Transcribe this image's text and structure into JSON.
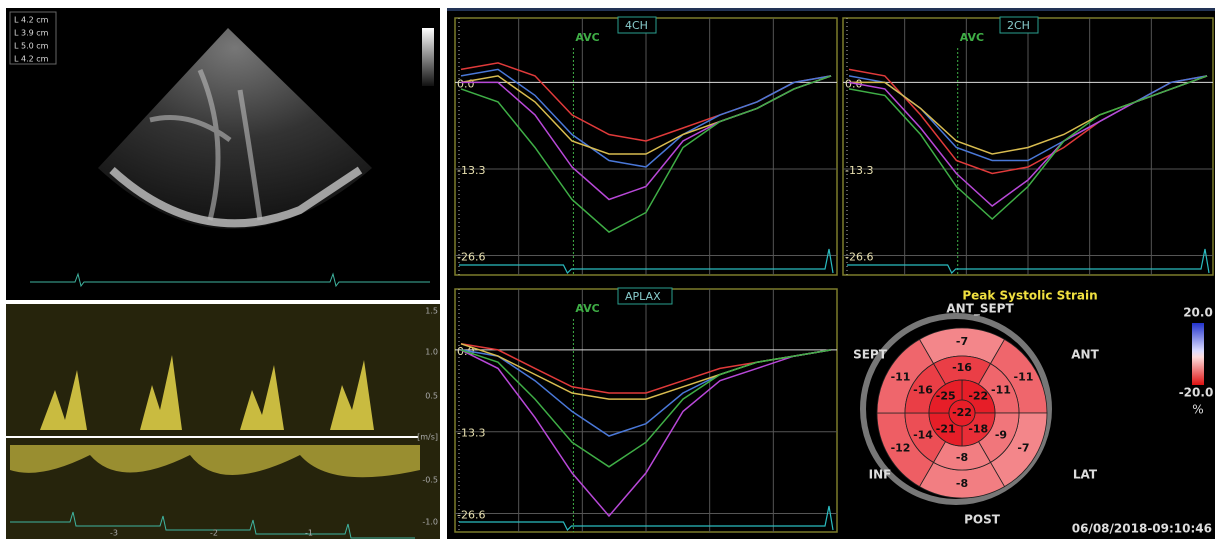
{
  "echo": {
    "measurements": [
      "L 4.2 cm",
      "L 3.9 cm",
      "L 5.0 cm",
      "L 4.2 cm"
    ]
  },
  "doppler": {
    "scale": [
      "1.5",
      "1.0",
      "0.5",
      "[m/s]",
      "-0.5",
      "-1.0"
    ],
    "time_labels": [
      "-3",
      "-2",
      "-1"
    ]
  },
  "chart_data": [
    {
      "type": "line",
      "title": "4CH",
      "marker": "AVC",
      "ylim": [
        -29.6,
        9.9
      ],
      "yticks": [
        {
          "value": 0,
          "label": "0.0"
        },
        {
          "value": -13.3,
          "label": "-13.3"
        },
        {
          "value": -26.6,
          "label": "-26.6"
        }
      ],
      "series": [
        {
          "color": "#e03a3a",
          "values": [
            2,
            3,
            1,
            -5,
            -8,
            -9,
            -7,
            -5,
            -3,
            0,
            1
          ]
        },
        {
          "color": "#4a78d8",
          "values": [
            1,
            2,
            -2,
            -8,
            -12,
            -13,
            -8,
            -5,
            -3,
            0,
            1
          ]
        },
        {
          "color": "#d8bc50",
          "values": [
            0,
            1,
            -3,
            -9,
            -11,
            -11,
            -8,
            -6,
            -4,
            -1,
            1
          ]
        },
        {
          "color": "#b848d8",
          "values": [
            0,
            0,
            -5,
            -13,
            -18,
            -16,
            -9,
            -6,
            -4,
            -1,
            1
          ]
        },
        {
          "color": "#3fae46",
          "values": [
            -1,
            -3,
            -10,
            -18,
            -23,
            -20,
            -10,
            -6,
            -4,
            -1,
            1
          ]
        }
      ]
    },
    {
      "type": "line",
      "title": "2CH",
      "marker": "AVC",
      "ylim": [
        -29.6,
        9.9
      ],
      "yticks": [
        {
          "value": 0,
          "label": "0.0"
        },
        {
          "value": -13.3,
          "label": "-13.3"
        },
        {
          "value": -26.6,
          "label": "-26.6"
        }
      ],
      "series": [
        {
          "color": "#e03a3a",
          "values": [
            2,
            1,
            -5,
            -12,
            -14,
            -13,
            -10,
            -6,
            -3,
            0,
            1
          ]
        },
        {
          "color": "#4a78d8",
          "values": [
            1,
            0,
            -4,
            -10,
            -12,
            -12,
            -9,
            -6,
            -3,
            0,
            1
          ]
        },
        {
          "color": "#d8bc50",
          "values": [
            0,
            0,
            -4,
            -9,
            -11,
            -10,
            -8,
            -5,
            -3,
            -1,
            1
          ]
        },
        {
          "color": "#b848d8",
          "values": [
            0,
            -1,
            -7,
            -14,
            -19,
            -15,
            -9,
            -6,
            -3,
            -1,
            1
          ]
        },
        {
          "color": "#3fae46",
          "values": [
            -1,
            -2,
            -8,
            -16,
            -21,
            -16,
            -9,
            -5,
            -3,
            -1,
            1
          ]
        }
      ]
    },
    {
      "type": "line",
      "title": "APLAX",
      "marker": "AVC",
      "ylim": [
        -29.6,
        9.9
      ],
      "yticks": [
        {
          "value": 0,
          "label": "0.0"
        },
        {
          "value": -13.3,
          "label": "-13.3"
        },
        {
          "value": -26.6,
          "label": "-26.6"
        }
      ],
      "series": [
        {
          "color": "#e03a3a",
          "values": [
            1,
            0,
            -3,
            -6,
            -7,
            -7,
            -5,
            -3,
            -2,
            -1,
            0
          ]
        },
        {
          "color": "#4a78d8",
          "values": [
            0,
            -1,
            -5,
            -10,
            -14,
            -12,
            -7,
            -4,
            -2,
            -1,
            0
          ]
        },
        {
          "color": "#d8bc50",
          "values": [
            1,
            -1,
            -4,
            -7,
            -8,
            -8,
            -6,
            -4,
            -2,
            -1,
            0
          ]
        },
        {
          "color": "#b848d8",
          "values": [
            0,
            -3,
            -11,
            -20,
            -27,
            -20,
            -10,
            -5,
            -3,
            -1,
            0
          ]
        },
        {
          "color": "#3fae46",
          "values": [
            0,
            -2,
            -8,
            -15,
            -19,
            -15,
            -8,
            -4,
            -2,
            -1,
            0
          ]
        }
      ]
    }
  ],
  "bullseye": {
    "title": "Peak Systolic Strain",
    "labels": [
      "ANT_SEPT",
      "ANT",
      "LAT",
      "POST",
      "INF",
      "SEPT"
    ],
    "basal": [
      -7,
      -11,
      -7,
      -8,
      -12,
      -11
    ],
    "mid": [
      -16,
      -11,
      -9,
      -8,
      -14,
      -16
    ],
    "apical": [
      -22,
      -18,
      -21,
      -25
    ],
    "apex": -22,
    "colorbar": {
      "max": {
        "value": 20,
        "label": "20.0"
      },
      "min": {
        "value": -20,
        "label": "-20.0"
      },
      "unit": "%"
    }
  },
  "timestamp": "06/08/2018-09:10:46"
}
